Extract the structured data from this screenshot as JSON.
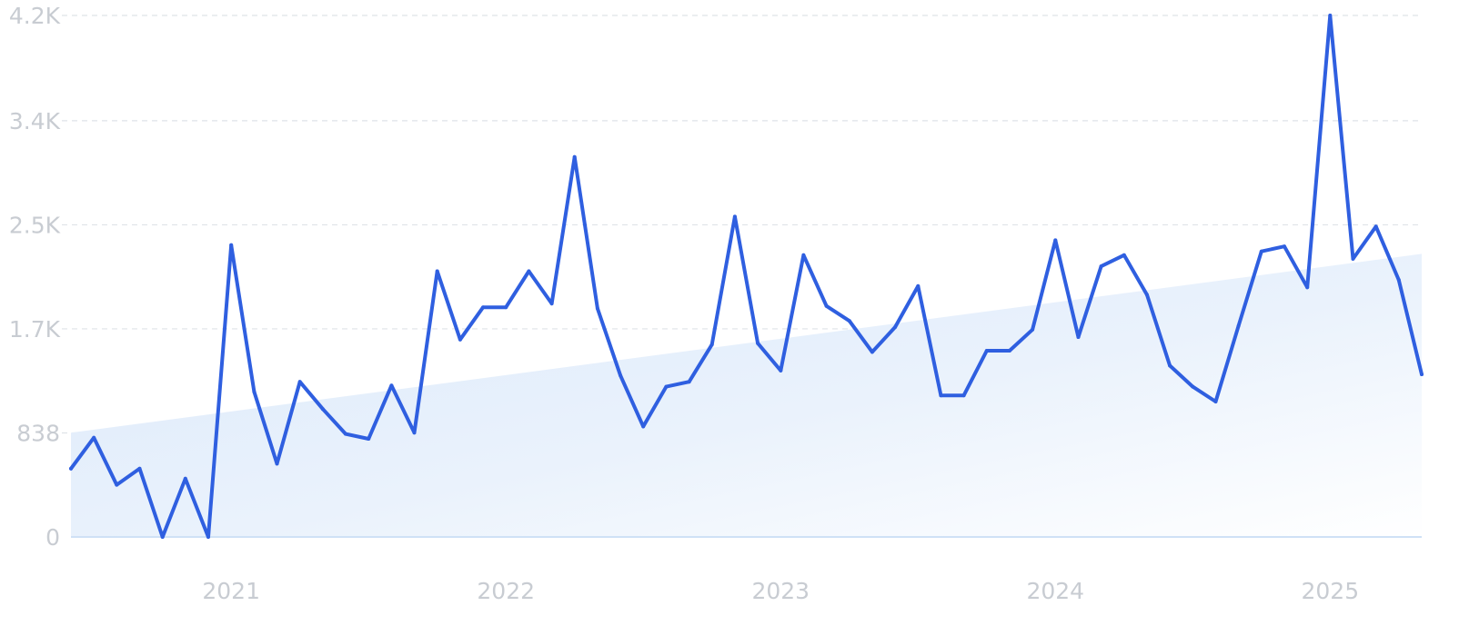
{
  "chart_data": {
    "type": "line",
    "title": "",
    "xlabel": "",
    "ylabel": "",
    "ylim": [
      0,
      4200
    ],
    "xlim": [
      "2020-06",
      "2025-05"
    ],
    "grid": true,
    "y_ticks": [
      {
        "value": 0,
        "label": "0"
      },
      {
        "value": 838,
        "label": "838"
      },
      {
        "value": 1676,
        "label": "1.7K"
      },
      {
        "value": 2514,
        "label": "2.5K"
      },
      {
        "value": 3352,
        "label": "3.4K"
      },
      {
        "value": 4200,
        "label": "4.2K"
      }
    ],
    "x_ticks": [
      {
        "value": "2021-01",
        "label": "2021"
      },
      {
        "value": "2022-01",
        "label": "2022"
      },
      {
        "value": "2023-01",
        "label": "2023"
      },
      {
        "value": "2024-01",
        "label": "2024"
      },
      {
        "value": "2025-01",
        "label": "2025"
      }
    ],
    "trend": {
      "start": [
        "2020-06",
        840
      ],
      "end": [
        "2025-05",
        2280
      ]
    },
    "colors": {
      "line": "#2f5fe0",
      "area_top": "#dbe9fa",
      "area_bottom": "#ffffff",
      "grid": "#dfe3e8",
      "tick": "#c8ccd2"
    },
    "series": [
      {
        "x": [
          "2020-06",
          "2020-07",
          "2020-08",
          "2020-09",
          "2020-10",
          "2020-11",
          "2020-12",
          "2021-01",
          "2021-02",
          "2021-03",
          "2021-04",
          "2021-05",
          "2021-06",
          "2021-07",
          "2021-08",
          "2021-09",
          "2021-10",
          "2021-11",
          "2021-12",
          "2022-01",
          "2022-02",
          "2022-03",
          "2022-04",
          "2022-05",
          "2022-06",
          "2022-07",
          "2022-08",
          "2022-09",
          "2022-10",
          "2022-11",
          "2022-12",
          "2023-01",
          "2023-02",
          "2023-03",
          "2023-04",
          "2023-05",
          "2023-06",
          "2023-07",
          "2023-08",
          "2023-09",
          "2023-10",
          "2023-11",
          "2023-12",
          "2024-01",
          "2024-02",
          "2024-03",
          "2024-04",
          "2024-05",
          "2024-06",
          "2024-07",
          "2024-08",
          "2024-09",
          "2024-10",
          "2024-11",
          "2024-12",
          "2025-01",
          "2025-02",
          "2025-03",
          "2025-04",
          "2025-05"
        ],
        "values": [
          550,
          800,
          420,
          550,
          0,
          470,
          0,
          2350,
          1170,
          590,
          1250,
          1030,
          830,
          790,
          1220,
          840,
          2140,
          1590,
          1850,
          1850,
          2140,
          1880,
          3060,
          1840,
          1300,
          890,
          1210,
          1250,
          1550,
          2580,
          1560,
          1340,
          2270,
          1860,
          1740,
          1490,
          1690,
          2020,
          1140,
          1140,
          1500,
          1500,
          1670,
          2390,
          1610,
          2180,
          2270,
          1950,
          1380,
          1210,
          1090,
          1700,
          2300,
          2340,
          2010,
          4200,
          2240,
          2500,
          2070,
          1310
        ]
      }
    ]
  }
}
